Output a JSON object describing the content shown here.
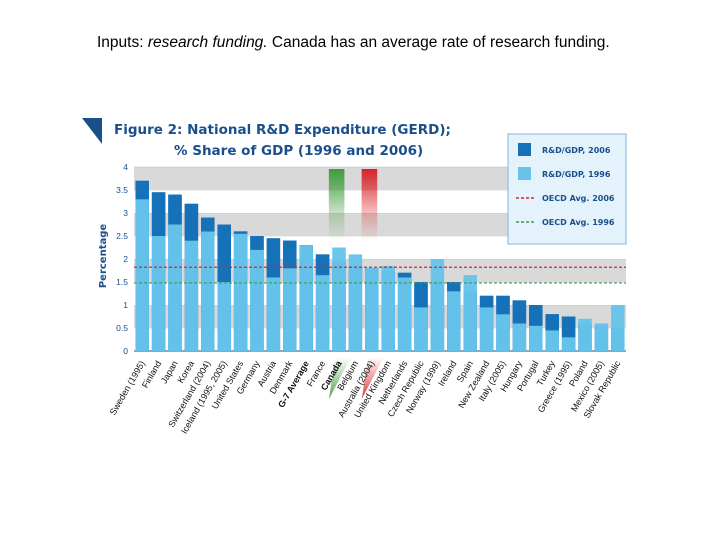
{
  "slide": {
    "title_prefix": "Inputs: ",
    "title_italic": "research funding.",
    "title_suffix": "  Canada has an average rate of research funding."
  },
  "colors": {
    "dark_bar": "#1572b8",
    "light_bar": "#67c3ea",
    "band_grey": "#d9d9d9",
    "figure_text": "#1a4f8c",
    "oecd_2006": "#d7262e",
    "oecd_1996": "#3d9a50",
    "highlight_green": "#3f9b3c",
    "highlight_red": "#d8232a"
  },
  "chart_data": {
    "type": "bar",
    "title_line1": "Figure 2:  National R&D Expenditure (GERD);",
    "title_line2": "% Share of GDP (1996 and 2006)",
    "ylabel": "Percentage",
    "ylim": [
      0,
      4
    ],
    "yticks": [
      "0",
      "0.5",
      "1",
      "1.5",
      "2",
      "2.5",
      "3",
      "3.5",
      "4"
    ],
    "categories": [
      "Sweden (1995)",
      "Finland",
      "Japan",
      "Korea",
      "Switzerland (2004)",
      "Iceland (1995, 2005)",
      "United States",
      "Germany",
      "Austria",
      "Denmark",
      "G-7 Average",
      "France",
      "Canada",
      "Belgium",
      "Australia (2004)",
      "United Kingdom",
      "Netherlands",
      "Czech Republic",
      "Norway (1999)",
      "Ireland",
      "Spain",
      "New Zealand",
      "Italy (2005)",
      "Hungary",
      "Portugal",
      "Turkey",
      "Greece (1995)",
      "Poland",
      "Mexico (2005)",
      "Slovak Republic"
    ],
    "bold_categories": [
      "G-7 Average",
      "Canada"
    ],
    "series": [
      {
        "name": "R&D/GDP, 2006",
        "values": [
          3.7,
          3.45,
          3.4,
          3.2,
          2.9,
          2.75,
          2.6,
          2.5,
          2.45,
          2.4,
          2.3,
          2.1,
          1.95,
          1.85,
          1.8,
          1.75,
          1.7,
          1.5,
          1.5,
          1.5,
          1.3,
          1.2,
          1.2,
          1.1,
          1.0,
          0.8,
          0.75,
          0.6,
          0.55,
          0.5
        ]
      },
      {
        "name": "R&D/GDP, 1996",
        "values": [
          3.3,
          2.5,
          2.75,
          2.4,
          2.6,
          1.5,
          2.55,
          2.2,
          1.6,
          1.8,
          2.3,
          1.65,
          2.25,
          2.1,
          1.8,
          1.85,
          1.6,
          0.95,
          2.0,
          1.3,
          1.65,
          0.95,
          0.8,
          0.6,
          0.55,
          0.45,
          0.3,
          0.7,
          0.6,
          1.0
        ]
      }
    ],
    "oecd_avg_2006": 1.82,
    "oecd_avg_1996": 1.48,
    "legend": [
      {
        "label": "R&D/GDP, 2006",
        "kind": "dark"
      },
      {
        "label": "R&D/GDP, 1996",
        "kind": "light"
      },
      {
        "label": "OECD Avg. 2006",
        "kind": "red-dash"
      },
      {
        "label": "OECD Avg. 1996",
        "kind": "green-dash"
      }
    ],
    "legend_position": "top-right",
    "highlight_columns": [
      {
        "category": "Canada",
        "color": "green"
      },
      {
        "category": "Australia (2004)",
        "color": "red"
      }
    ]
  }
}
